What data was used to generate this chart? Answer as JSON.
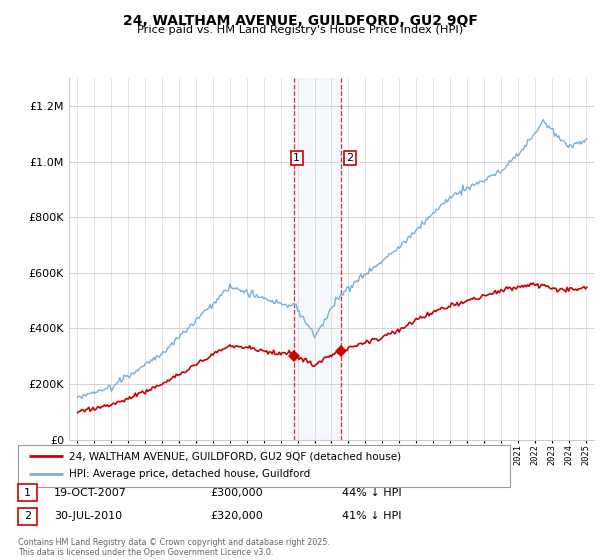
{
  "title1": "24, WALTHAM AVENUE, GUILDFORD, GU2 9QF",
  "title2": "Price paid vs. HM Land Registry's House Price Index (HPI)",
  "legend1": "24, WALTHAM AVENUE, GUILDFORD, GU2 9QF (detached house)",
  "legend2": "HPI: Average price, detached house, Guildford",
  "t1_date": "19-OCT-2007",
  "t1_price": "£300,000",
  "t1_pct": "44% ↓ HPI",
  "t2_date": "30-JUL-2010",
  "t2_price": "£320,000",
  "t2_pct": "41% ↓ HPI",
  "footer": "Contains HM Land Registry data © Crown copyright and database right 2025.\nThis data is licensed under the Open Government Licence v3.0.",
  "hpi_color": "#7ab0d4",
  "price_color": "#cc0000",
  "marker1_x": 2007.8,
  "marker2_x": 2010.58,
  "marker1_y": 300000,
  "marker2_y": 320000,
  "shade_x1": 2007.8,
  "shade_x2": 2010.58,
  "vline1_x": 2007.8,
  "vline2_x": 2010.58,
  "ylim": [
    0,
    1300000
  ],
  "yticks": [
    0,
    200000,
    400000,
    600000,
    800000,
    1000000,
    1200000
  ],
  "xlim": [
    1994.5,
    2025.5
  ]
}
